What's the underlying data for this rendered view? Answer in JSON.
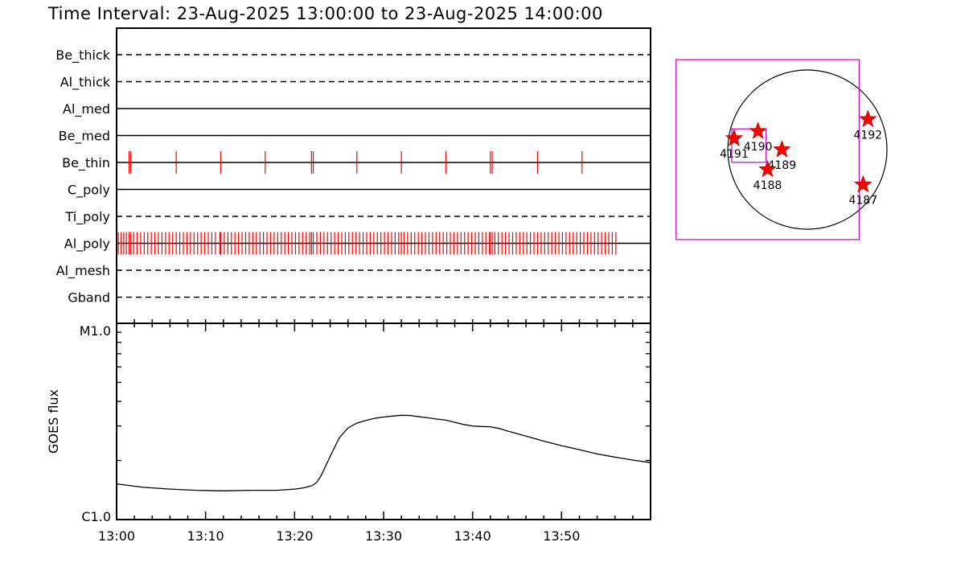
{
  "title": "Time Interval: 23-Aug-2025 13:00:00 to 23-Aug-2025 14:00:00",
  "colors": {
    "marker": "#ff0000",
    "fov": "#cc00cc",
    "line": "#000000"
  },
  "chart_data": [
    {
      "type": "timeline",
      "x_range_min": [
        0,
        60
      ],
      "filters": [
        {
          "name": "Be_thick",
          "style": "dashed",
          "exposures_min": []
        },
        {
          "name": "Al_thick",
          "style": "dashed",
          "exposures_min": []
        },
        {
          "name": "Al_med",
          "style": "solid",
          "exposures_min": []
        },
        {
          "name": "Be_med",
          "style": "solid",
          "exposures_min": []
        },
        {
          "name": "Be_thin",
          "style": "solid",
          "exposures_min": [
            1.4,
            1.6,
            6.7,
            11.7,
            16.7,
            21.9,
            22.1,
            27.0,
            32.0,
            37.0,
            42.0,
            42.2,
            47.3,
            52.3
          ]
        },
        {
          "name": "C_poly",
          "style": "solid",
          "exposures_min": []
        },
        {
          "name": "Ti_poly",
          "style": "dashed",
          "exposures_min": []
        },
        {
          "name": "Al_poly",
          "style": "solid",
          "exposures_min": [
            0.2,
            0.5,
            0.8,
            1.1,
            1.4,
            1.6,
            1.9,
            2.3,
            2.7,
            3.1,
            3.5,
            3.9,
            4.3,
            4.7,
            5.1,
            5.5,
            5.9,
            6.3,
            6.7,
            7.1,
            7.5,
            7.9,
            8.3,
            8.7,
            9.1,
            9.5,
            9.9,
            10.3,
            10.7,
            11.1,
            11.6,
            11.7,
            12.1,
            12.5,
            12.9,
            13.3,
            13.7,
            14.1,
            14.5,
            14.9,
            15.3,
            15.7,
            16.1,
            16.5,
            16.9,
            17.3,
            17.7,
            18.1,
            18.5,
            18.9,
            19.3,
            19.7,
            20.1,
            20.5,
            20.9,
            21.3,
            21.7,
            21.9,
            22.1,
            22.5,
            22.9,
            23.3,
            23.7,
            24.1,
            24.5,
            24.9,
            25.3,
            25.7,
            26.1,
            26.5,
            26.9,
            27.3,
            27.7,
            28.1,
            28.5,
            28.9,
            29.3,
            29.7,
            30.1,
            30.5,
            30.9,
            31.3,
            31.7,
            32.0,
            32.3,
            32.7,
            33.1,
            33.5,
            33.9,
            34.3,
            34.7,
            35.1,
            35.5,
            35.9,
            36.3,
            36.7,
            37.1,
            37.5,
            37.9,
            38.3,
            38.7,
            39.1,
            39.5,
            39.9,
            40.3,
            40.7,
            41.1,
            41.5,
            41.9,
            42.0,
            42.2,
            42.5,
            42.9,
            43.3,
            43.7,
            44.1,
            44.5,
            44.9,
            45.3,
            45.7,
            46.1,
            46.5,
            46.9,
            47.3,
            47.7,
            48.1,
            48.5,
            48.9,
            49.3,
            49.7,
            50.1,
            50.5,
            50.9,
            51.3,
            51.7,
            52.1,
            52.5,
            52.9,
            53.3,
            53.7,
            54.1,
            54.5,
            54.9,
            55.3,
            55.7,
            56.1
          ]
        },
        {
          "name": "Al_mesh",
          "style": "dashed",
          "exposures_min": []
        },
        {
          "name": "Gband",
          "style": "dashed",
          "exposures_min": []
        }
      ]
    },
    {
      "type": "line",
      "ylabel": "GOES flux",
      "y_scale": "log",
      "y_ticks": [
        "M1.0",
        "C1.0"
      ],
      "y_range": [
        1e-06,
        1e-05
      ],
      "x_tick_labels": [
        "13:00",
        "13:10",
        "13:20",
        "13:30",
        "13:40",
        "13:50"
      ],
      "x_tick_minutes": [
        0,
        10,
        20,
        30,
        40,
        50
      ],
      "x_range_min": [
        0,
        60
      ],
      "series": [
        {
          "x_min": [
            0,
            3,
            6,
            9,
            12,
            15,
            18,
            20,
            21,
            22,
            22.5,
            23,
            24,
            25,
            26,
            27,
            28,
            29,
            30,
            31,
            32,
            33,
            34,
            35,
            36,
            37,
            38,
            39,
            40,
            41,
            42,
            43,
            44,
            46,
            48,
            50,
            52,
            54,
            56,
            58,
            60
          ],
          "y_flux": [
            1.52e-06,
            1.46e-06,
            1.43e-06,
            1.41e-06,
            1.4e-06,
            1.41e-06,
            1.41e-06,
            1.43e-06,
            1.45e-06,
            1.49e-06,
            1.55e-06,
            1.68e-06,
            2.1e-06,
            2.6e-06,
            2.93e-06,
            3.1e-06,
            3.2e-06,
            3.28e-06,
            3.33e-06,
            3.37e-06,
            3.4e-06,
            3.39e-06,
            3.34e-06,
            3.3e-06,
            3.25e-06,
            3.21e-06,
            3.13e-06,
            3.05e-06,
            3e-06,
            2.98e-06,
            2.97e-06,
            2.91e-06,
            2.82e-06,
            2.66e-06,
            2.51e-06,
            2.38e-06,
            2.27e-06,
            2.16e-06,
            2.08e-06,
            2.01e-06,
            1.95e-06
          ]
        }
      ]
    },
    {
      "type": "scatter",
      "disk": true,
      "regions": [
        {
          "label": "4192",
          "x": 0.76,
          "y": -0.38
        },
        {
          "label": "4190",
          "x": -0.62,
          "y": -0.23
        },
        {
          "label": "4191",
          "x": -0.92,
          "y": -0.14
        },
        {
          "label": "4189",
          "x": -0.32,
          "y": 0.0
        },
        {
          "label": "4188",
          "x": -0.5,
          "y": 0.25
        },
        {
          "label": "4187",
          "x": 0.7,
          "y": 0.44
        }
      ],
      "fov_large": {
        "x": [
          -1.65,
          0.65
        ],
        "y": [
          -1.13,
          1.13
        ]
      },
      "fov_small": {
        "x": [
          -0.95,
          -0.52
        ],
        "y": [
          -0.26,
          0.16
        ]
      }
    }
  ]
}
